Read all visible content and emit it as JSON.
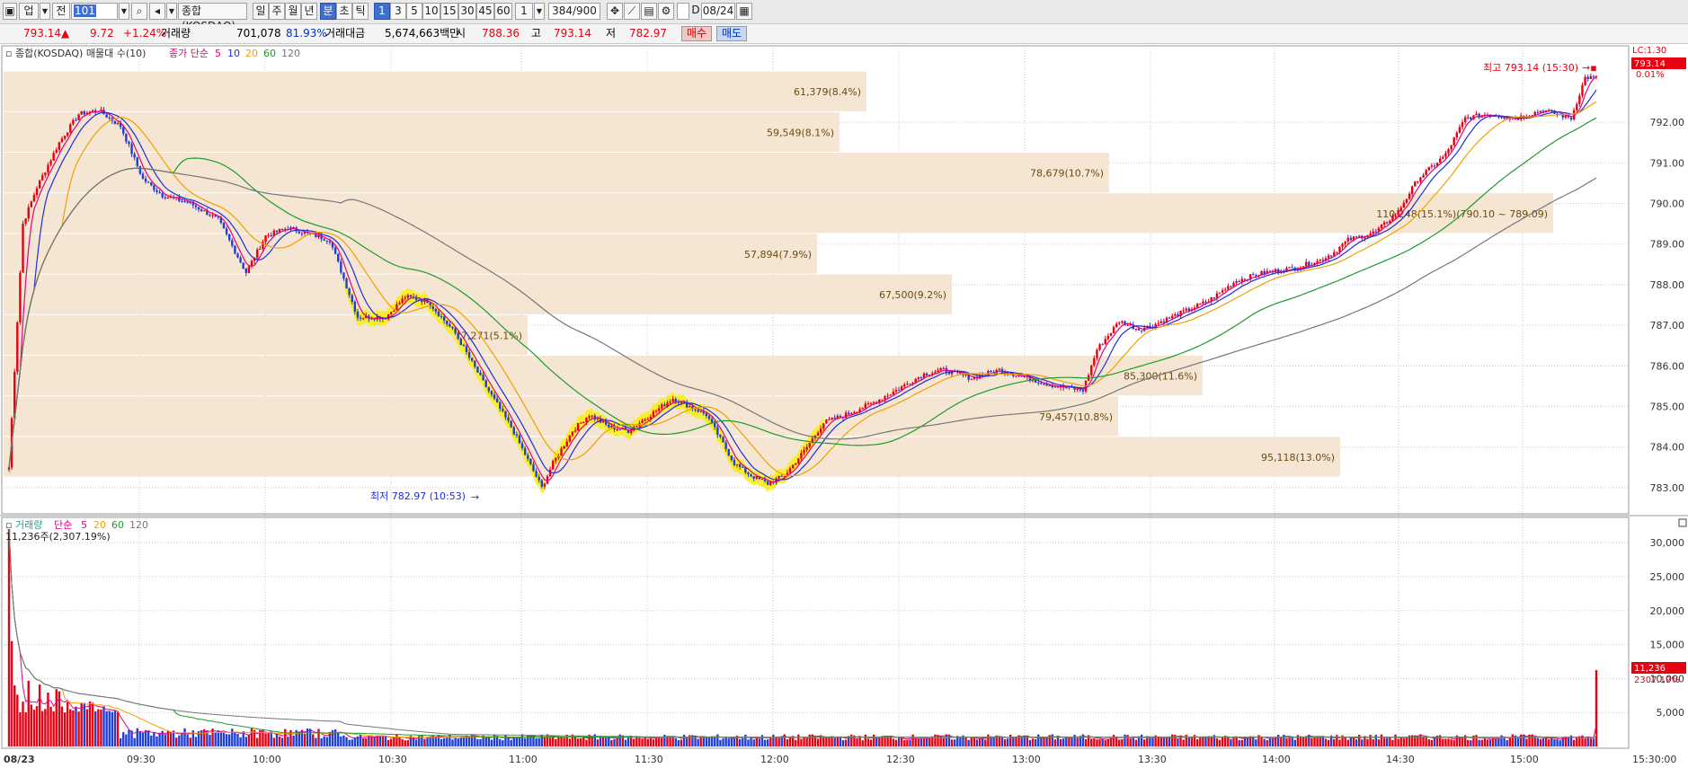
{
  "toolbar": {
    "view_label": "업",
    "code_left": "전",
    "code_value": "101",
    "index_name": "종합(KOSDAQ)",
    "period_buttons": [
      "일",
      "주",
      "월",
      "년",
      "분",
      "초",
      "틱"
    ],
    "active_period": "분",
    "interval_buttons": [
      "1",
      "3",
      "5",
      "10",
      "15",
      "30",
      "45",
      "60"
    ],
    "active_interval": "1",
    "interval_value": "1",
    "count_value": "384",
    "count_total": "/900",
    "date_value": "08/24"
  },
  "quote": {
    "price": "793.14",
    "change_mark": "▲",
    "change": "9.72",
    "change_pct": "+1.24%",
    "volume_label": "거래량",
    "volume": "701,078",
    "volume_pct": "81.93%",
    "amount_label": "거래대금",
    "amount": "5,674,663백만",
    "open_label": "시",
    "open": "788.36",
    "high_label": "고",
    "high": "793.14",
    "low_label": "저",
    "low": "782.97",
    "buy_label": "매수",
    "sell_label": "매도"
  },
  "price_panel": {
    "legend_name": "종합(KOSDAQ) 매물대 수(10)",
    "legend_ma": "종가 단순",
    "ma_periods": [
      "5",
      "10",
      "20",
      "60",
      "120"
    ],
    "ma_colors": [
      "#e6007e",
      "#1f2ddb",
      "#f0a000",
      "#1e9a2c",
      "#777777"
    ],
    "top_label": "LC:1.30",
    "last_price_tag": "793.14",
    "pct_tag": "0.01%",
    "high_label": "최고 793.14 (15:30)",
    "low_label": "최저 782.97 (10:53)"
  },
  "volume_panel": {
    "legend_name": "거래량",
    "legend_ma": "단순",
    "ma_periods": [
      "5",
      "20",
      "60",
      "120"
    ],
    "info": "11,236주(2,307.19%)",
    "last_volume_tag": "11,236",
    "last_pct_tag": "2307.19%"
  },
  "colors": {
    "up": "#e60012",
    "down": "#1f3fd6",
    "profile": "#f5e6d3",
    "highlight": "#f6ee1e"
  },
  "chart_data": [
    {
      "type": "candlestick",
      "title": "종합(KOSDAQ)",
      "ylim": [
        782.6,
        793.75
      ],
      "y_ticks": [
        "783.00",
        "784.00",
        "785.00",
        "786.00",
        "787.00",
        "788.00",
        "789.00",
        "790.00",
        "791.00",
        "792.00"
      ],
      "x_ticks": [
        "08/23",
        "09:30",
        "10:00",
        "10:30",
        "11:00",
        "11:30",
        "12:00",
        "12:30",
        "13:00",
        "13:30",
        "14:00",
        "14:30",
        "15:00",
        "15:30:00"
      ],
      "price_path": [
        [
          0,
          783.5
        ],
        [
          5,
          789.5
        ],
        [
          10,
          790.4
        ],
        [
          18,
          791.5
        ],
        [
          25,
          792.2
        ],
        [
          32,
          792.3
        ],
        [
          40,
          791.9
        ],
        [
          48,
          790.6
        ],
        [
          55,
          790.2
        ],
        [
          65,
          790
        ],
        [
          75,
          789.6
        ],
        [
          85,
          788.3
        ],
        [
          92,
          789.2
        ],
        [
          100,
          789.4
        ],
        [
          115,
          789.1
        ],
        [
          125,
          787.2
        ],
        [
          135,
          787.2
        ],
        [
          142,
          787.7
        ],
        [
          150,
          787.6
        ],
        [
          160,
          786.8
        ],
        [
          170,
          785.6
        ],
        [
          180,
          784.5
        ],
        [
          191,
          783.0
        ],
        [
          195,
          783.6
        ],
        [
          202,
          784.4
        ],
        [
          208,
          784.8
        ],
        [
          215,
          784.5
        ],
        [
          222,
          784.4
        ],
        [
          230,
          784.8
        ],
        [
          238,
          785.2
        ],
        [
          244,
          785.0
        ],
        [
          250,
          784.8
        ],
        [
          260,
          783.6
        ],
        [
          266,
          783.3
        ],
        [
          272,
          783.1
        ],
        [
          278,
          783.3
        ],
        [
          285,
          783.9
        ],
        [
          292,
          784.6
        ],
        [
          300,
          784.8
        ],
        [
          310,
          785.1
        ],
        [
          318,
          785.4
        ],
        [
          328,
          785.8
        ],
        [
          335,
          785.9
        ],
        [
          345,
          785.7
        ],
        [
          355,
          785.9
        ],
        [
          365,
          785.7
        ],
        [
          375,
          785.5
        ],
        [
          385,
          785.4
        ],
        [
          390,
          786.4
        ],
        [
          398,
          787.1
        ],
        [
          405,
          786.9
        ],
        [
          410,
          787.0
        ],
        [
          420,
          787.3
        ],
        [
          430,
          787.6
        ],
        [
          440,
          788.1
        ],
        [
          450,
          788.3
        ],
        [
          460,
          788.4
        ],
        [
          470,
          788.6
        ],
        [
          475,
          788.8
        ],
        [
          480,
          789.1
        ],
        [
          490,
          789.3
        ],
        [
          498,
          789.8
        ],
        [
          505,
          790.6
        ],
        [
          515,
          791.2
        ],
        [
          522,
          792.1
        ],
        [
          530,
          792.2
        ],
        [
          540,
          792.1
        ],
        [
          550,
          792.3
        ],
        [
          560,
          792.1
        ],
        [
          565,
          793.1
        ]
      ],
      "volume_profile": [
        {
          "label": "61,379(8.4%)",
          "range": [
            792.25,
            793.25
          ]
        },
        {
          "label": "59,549(8.1%)",
          "range": [
            791.25,
            792.25
          ]
        },
        {
          "label": "78,679(10.7%)",
          "range": [
            790.25,
            791.25
          ]
        },
        {
          "label": "110,248(15.1%)(790.10 ~ 789.09)",
          "range": [
            789.25,
            790.25
          ]
        },
        {
          "label": "57,894(7.9%)",
          "range": [
            788.25,
            789.25
          ]
        },
        {
          "label": "67,500(9.2%)",
          "range": [
            787.25,
            788.25
          ]
        },
        {
          "label": "37,271(5.1%)",
          "range": [
            786.25,
            787.25
          ]
        },
        {
          "label": "85,300(11.6%)",
          "range": [
            785.25,
            786.25
          ]
        },
        {
          "label": "79,457(10.8%)",
          "range": [
            784.25,
            785.25
          ]
        },
        {
          "label": "95,118(13.0%)",
          "range": [
            783.25,
            784.25
          ]
        }
      ],
      "high": {
        "value": 793.14,
        "time": "15:30"
      },
      "low": {
        "value": 782.97,
        "time": "10:53"
      }
    },
    {
      "type": "bar",
      "title": "거래량",
      "ylim": [
        0,
        32000
      ],
      "y_ticks": [
        "5,000",
        "10,000",
        "15,000",
        "20,000",
        "25,000",
        "30,000"
      ],
      "last_value": 11236
    }
  ]
}
